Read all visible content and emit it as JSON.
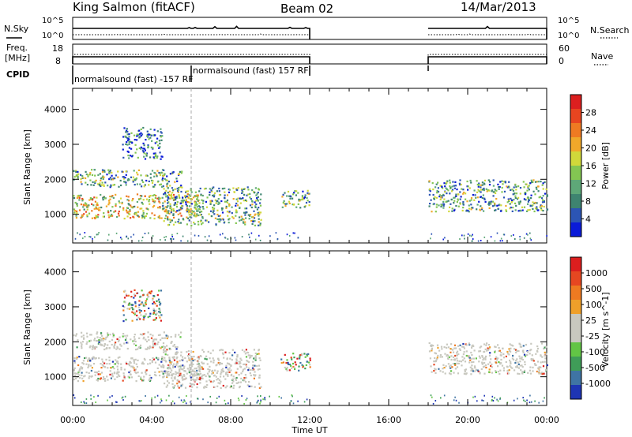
{
  "header": {
    "title": "King Salmon (fitACF)",
    "beam": "Beam 02",
    "date": "14/Mar/2013"
  },
  "top_panels": {
    "nsky_label": "N.Sky",
    "nsky_ticks": [
      "10^5",
      "10^0"
    ],
    "nsky_right_ticks": [
      "10^5",
      "10^0"
    ],
    "nsearch_label": "N.Search",
    "freq_label": [
      "Freq.",
      "[MHz]"
    ],
    "freq_ticks": [
      "18",
      "8"
    ],
    "nave_label": "Nave",
    "nave_ticks": [
      "60",
      "0"
    ],
    "cpid_label": "CPID",
    "cpid_segments": [
      {
        "label": "normalsound (fast) -157 RF",
        "start": 0,
        "end": 6
      },
      {
        "label": "normalsound (fast) 157 RF",
        "start": 6,
        "end": 12
      }
    ]
  },
  "chart_data": [
    {
      "type": "heatmap",
      "name": "power",
      "ylabel": "Slant Range [km]",
      "ylim": [
        180,
        4600
      ],
      "y_ticks": [
        1000,
        2000,
        3000,
        4000
      ],
      "xlim": [
        0,
        24
      ],
      "colorbar": {
        "label": "Power [dB]",
        "ticks": [
          "4",
          "8",
          "12",
          "16",
          "20",
          "24",
          "28"
        ],
        "colors": [
          "#0a1bd8",
          "#2c55b4",
          "#3e8470",
          "#5ea878",
          "#83c652",
          "#d0d83a",
          "#f0a82a",
          "#ef7a22",
          "#e84520",
          "#dc1f1f"
        ]
      },
      "echo_regions": [
        {
          "x": [
            0.0,
            6.5
          ],
          "y": [
            900,
            1600
          ],
          "level": "high"
        },
        {
          "x": [
            0.0,
            5.5
          ],
          "y": [
            1800,
            2300
          ],
          "level": "mid"
        },
        {
          "x": [
            2.5,
            4.5
          ],
          "y": [
            2600,
            3500
          ],
          "level": "low"
        },
        {
          "x": [
            4.5,
            9.5
          ],
          "y": [
            700,
            1800
          ],
          "level": "mid"
        },
        {
          "x": [
            10.5,
            12.0
          ],
          "y": [
            1200,
            1700
          ],
          "level": "mid"
        },
        {
          "x": [
            18.0,
            24.0
          ],
          "y": [
            1100,
            2000
          ],
          "level": "mid"
        }
      ]
    },
    {
      "type": "heatmap",
      "name": "velocity",
      "ylabel": "Slant Range [km]",
      "ylim": [
        180,
        4600
      ],
      "y_ticks": [
        1000,
        2000,
        3000,
        4000
      ],
      "xlim": [
        0,
        24
      ],
      "xlabel": "Time UT",
      "x_ticks": [
        "00:00",
        "04:00",
        "08:00",
        "12:00",
        "16:00",
        "20:00",
        "00:00"
      ],
      "colorbar": {
        "label": "Velocity [m s^-1]",
        "ticks": [
          "1000",
          "500",
          "100",
          "25",
          "-25",
          "-100",
          "-500",
          "-1000"
        ],
        "colors": [
          "#1e35b4",
          "#3f74a4",
          "#3f9d58",
          "#62c545",
          "#c8c8bf",
          "#c8c8bf",
          "#efa02a",
          "#ee7a21",
          "#e64721",
          "#dc1e1e"
        ]
      },
      "echo_regions": [
        {
          "x": [
            0.0,
            6.5
          ],
          "y": [
            900,
            1600
          ],
          "level": "ground"
        },
        {
          "x": [
            0.0,
            5.5
          ],
          "y": [
            1800,
            2300
          ],
          "level": "ground"
        },
        {
          "x": [
            2.5,
            4.5
          ],
          "y": [
            2600,
            3500
          ],
          "level": "mixed"
        },
        {
          "x": [
            4.5,
            9.5
          ],
          "y": [
            700,
            1800
          ],
          "level": "ground"
        },
        {
          "x": [
            10.5,
            12.0
          ],
          "y": [
            1200,
            1700
          ],
          "level": "mixed"
        },
        {
          "x": [
            18.0,
            24.0
          ],
          "y": [
            1100,
            2000
          ],
          "level": "ground"
        }
      ]
    }
  ],
  "data_gap": {
    "x": [
      12.0,
      18.0
    ]
  },
  "marker_line_x": 6.0
}
